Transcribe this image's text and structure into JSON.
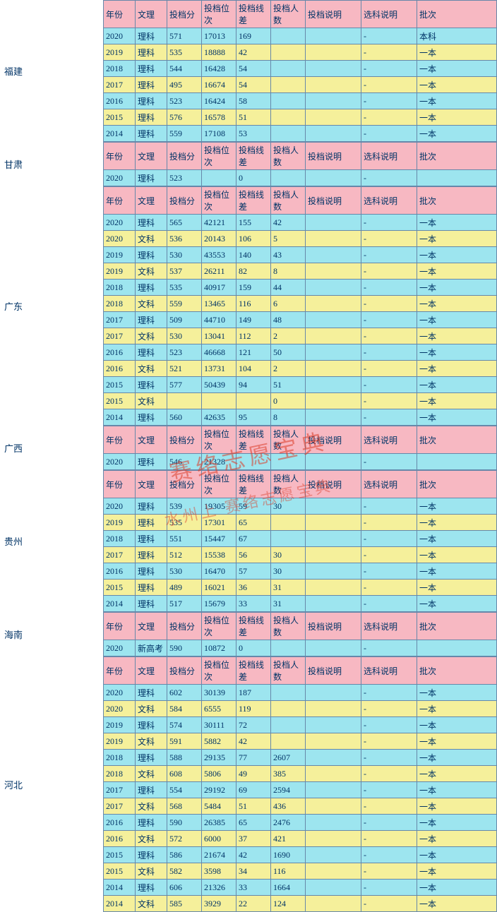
{
  "colors": {
    "header_bg": "#f7b8c2",
    "cyan_bg": "#9de5ef",
    "yellow_bg": "#f5f09b",
    "border": "#6688aa",
    "text": "#003366",
    "watermark": "rgba(220,60,40,0.55)"
  },
  "header_labels": [
    "年份",
    "文理",
    "投档分",
    "投档位次",
    "投档线差",
    "投档人数",
    "投档说明",
    "选科说明",
    "批次"
  ],
  "watermark_main": "赛络志愿宝典",
  "watermark_sub": "水州上 赛络志愿宝典",
  "dash": "-",
  "provinces": [
    {
      "name": "福建",
      "rows": [
        {
          "c": "cyan",
          "d": [
            "2020",
            "理科",
            "571",
            "17013",
            "169",
            "",
            "",
            "-",
            "本科"
          ]
        },
        {
          "c": "yellow",
          "d": [
            "2019",
            "理科",
            "535",
            "18888",
            "42",
            "",
            "",
            "-",
            "一本"
          ]
        },
        {
          "c": "cyan",
          "d": [
            "2018",
            "理科",
            "544",
            "16428",
            "54",
            "",
            "",
            "-",
            "一本"
          ]
        },
        {
          "c": "yellow",
          "d": [
            "2017",
            "理科",
            "495",
            "16674",
            "54",
            "",
            "",
            "-",
            "一本"
          ]
        },
        {
          "c": "cyan",
          "d": [
            "2016",
            "理科",
            "523",
            "16424",
            "58",
            "",
            "",
            "-",
            "一本"
          ]
        },
        {
          "c": "yellow",
          "d": [
            "2015",
            "理科",
            "576",
            "16578",
            "51",
            "",
            "",
            "-",
            "一本"
          ]
        },
        {
          "c": "cyan",
          "d": [
            "2014",
            "理科",
            "559",
            "17108",
            "53",
            "",
            "",
            "-",
            "一本"
          ]
        }
      ]
    },
    {
      "name": "甘肃",
      "rows": [
        {
          "c": "cyan",
          "d": [
            "2020",
            "理科",
            "523",
            "",
            "0",
            "",
            "",
            "-",
            ""
          ]
        }
      ]
    },
    {
      "name": "广东",
      "rows": [
        {
          "c": "cyan",
          "d": [
            "2020",
            "理科",
            "565",
            "42121",
            "155",
            "42",
            "",
            "-",
            "一本"
          ]
        },
        {
          "c": "yellow",
          "d": [
            "2020",
            "文科",
            "536",
            "20143",
            "106",
            "5",
            "",
            "-",
            "一本"
          ]
        },
        {
          "c": "cyan",
          "d": [
            "2019",
            "理科",
            "530",
            "43553",
            "140",
            "43",
            "",
            "-",
            "一本"
          ]
        },
        {
          "c": "yellow",
          "d": [
            "2019",
            "文科",
            "537",
            "26211",
            "82",
            "8",
            "",
            "-",
            "一本"
          ]
        },
        {
          "c": "cyan",
          "d": [
            "2018",
            "理科",
            "535",
            "40917",
            "159",
            "44",
            "",
            "-",
            "一本"
          ]
        },
        {
          "c": "yellow",
          "d": [
            "2018",
            "文科",
            "559",
            "13465",
            "116",
            "6",
            "",
            "-",
            "一本"
          ]
        },
        {
          "c": "cyan",
          "d": [
            "2017",
            "理科",
            "509",
            "44710",
            "149",
            "48",
            "",
            "-",
            "一本"
          ]
        },
        {
          "c": "yellow",
          "d": [
            "2017",
            "文科",
            "530",
            "13041",
            "112",
            "2",
            "",
            "-",
            "一本"
          ]
        },
        {
          "c": "cyan",
          "d": [
            "2016",
            "理科",
            "523",
            "46668",
            "121",
            "50",
            "",
            "-",
            "一本"
          ]
        },
        {
          "c": "yellow",
          "d": [
            "2016",
            "文科",
            "521",
            "13731",
            "104",
            "2",
            "",
            "-",
            "一本"
          ]
        },
        {
          "c": "cyan",
          "d": [
            "2015",
            "理科",
            "577",
            "50439",
            "94",
            "51",
            "",
            "-",
            "一本"
          ]
        },
        {
          "c": "yellow",
          "d": [
            "2015",
            "文科",
            "",
            "",
            "",
            "0",
            "",
            "-",
            "一本"
          ]
        },
        {
          "c": "cyan",
          "d": [
            "2014",
            "理科",
            "560",
            "42635",
            "95",
            "8",
            "",
            "-",
            "一本"
          ]
        }
      ]
    },
    {
      "name": "广西",
      "rows": [
        {
          "c": "cyan",
          "d": [
            "2020",
            "理科",
            "546",
            "21328",
            "",
            "",
            "",
            "-",
            ""
          ]
        }
      ]
    },
    {
      "name": "贵州",
      "rows": [
        {
          "c": "cyan",
          "d": [
            "2020",
            "理科",
            "539",
            "19305",
            "59",
            "30",
            "",
            "-",
            "一本"
          ]
        },
        {
          "c": "yellow",
          "d": [
            "2019",
            "理科",
            "535",
            "17301",
            "65",
            "",
            "",
            "-",
            "一本"
          ]
        },
        {
          "c": "cyan",
          "d": [
            "2018",
            "理科",
            "551",
            "15447",
            "67",
            "",
            "",
            "-",
            "一本"
          ]
        },
        {
          "c": "yellow",
          "d": [
            "2017",
            "理科",
            "512",
            "15538",
            "56",
            "30",
            "",
            "-",
            "一本"
          ]
        },
        {
          "c": "cyan",
          "d": [
            "2016",
            "理科",
            "530",
            "16470",
            "57",
            "30",
            "",
            "-",
            "一本"
          ]
        },
        {
          "c": "yellow",
          "d": [
            "2015",
            "理科",
            "489",
            "16021",
            "36",
            "31",
            "",
            "-",
            "一本"
          ]
        },
        {
          "c": "cyan",
          "d": [
            "2014",
            "理科",
            "517",
            "15679",
            "33",
            "31",
            "",
            "-",
            "一本"
          ]
        }
      ]
    },
    {
      "name": "海南",
      "rows": [
        {
          "c": "cyan",
          "d": [
            "2020",
            "新高考",
            "590",
            "10872",
            "0",
            "",
            "",
            "-",
            ""
          ]
        }
      ]
    },
    {
      "name": "河北",
      "rows": [
        {
          "c": "cyan",
          "d": [
            "2020",
            "理科",
            "602",
            "30139",
            "187",
            "",
            "",
            "-",
            "一本"
          ]
        },
        {
          "c": "yellow",
          "d": [
            "2020",
            "文科",
            "584",
            "6555",
            "119",
            "",
            "",
            "-",
            "一本"
          ]
        },
        {
          "c": "cyan",
          "d": [
            "2019",
            "理科",
            "574",
            "30111",
            "72",
            "",
            "",
            "-",
            "一本"
          ]
        },
        {
          "c": "yellow",
          "d": [
            "2019",
            "文科",
            "591",
            "5882",
            "42",
            "",
            "",
            "-",
            "一本"
          ]
        },
        {
          "c": "cyan",
          "d": [
            "2018",
            "理科",
            "588",
            "29135",
            "77",
            "2607",
            "",
            "-",
            "一本"
          ]
        },
        {
          "c": "yellow",
          "d": [
            "2018",
            "文科",
            "608",
            "5806",
            "49",
            "385",
            "",
            "-",
            "一本"
          ]
        },
        {
          "c": "cyan",
          "d": [
            "2017",
            "理科",
            "554",
            "29192",
            "69",
            "2594",
            "",
            "-",
            "一本"
          ]
        },
        {
          "c": "yellow",
          "d": [
            "2017",
            "文科",
            "568",
            "5484",
            "51",
            "436",
            "",
            "-",
            "一本"
          ]
        },
        {
          "c": "cyan",
          "d": [
            "2016",
            "理科",
            "590",
            "26385",
            "65",
            "2476",
            "",
            "-",
            "一本"
          ]
        },
        {
          "c": "yellow",
          "d": [
            "2016",
            "文科",
            "572",
            "6000",
            "37",
            "421",
            "",
            "-",
            "一本"
          ]
        },
        {
          "c": "cyan",
          "d": [
            "2015",
            "理科",
            "586",
            "21674",
            "42",
            "1690",
            "",
            "-",
            "一本"
          ]
        },
        {
          "c": "yellow",
          "d": [
            "2015",
            "文科",
            "582",
            "3598",
            "34",
            "116",
            "",
            "-",
            "一本"
          ]
        },
        {
          "c": "cyan",
          "d": [
            "2014",
            "理科",
            "606",
            "21326",
            "33",
            "1664",
            "",
            "-",
            "一本"
          ]
        },
        {
          "c": "yellow",
          "d": [
            "2014",
            "文科",
            "585",
            "3929",
            "22",
            "124",
            "",
            "-",
            "一本"
          ]
        }
      ]
    }
  ]
}
